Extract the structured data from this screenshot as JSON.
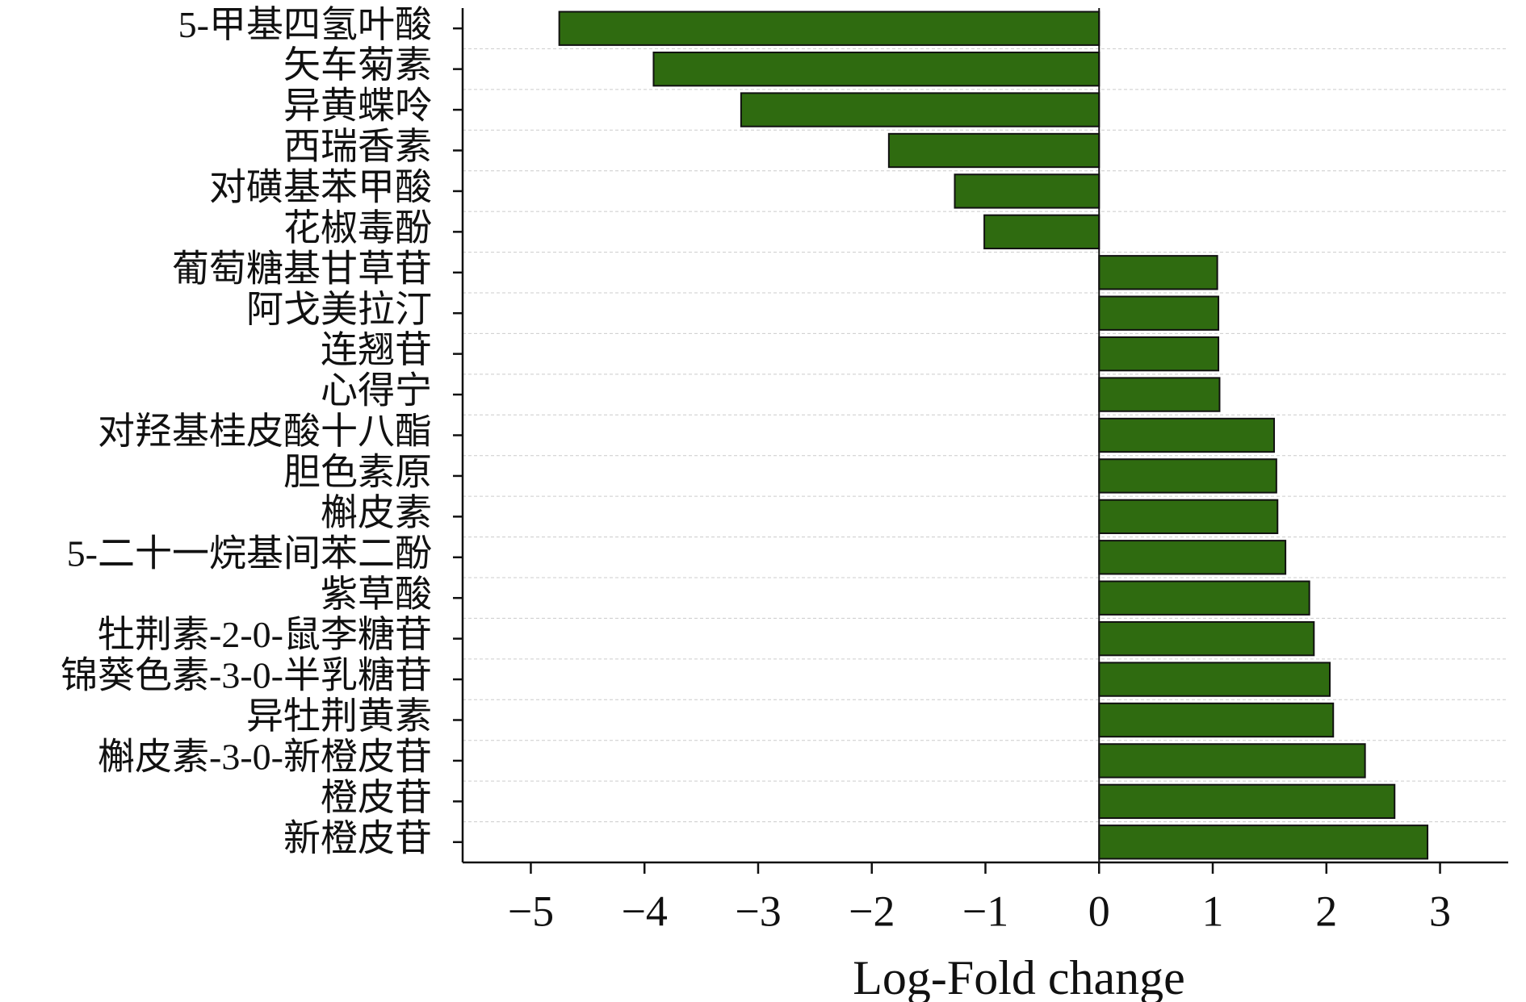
{
  "chart_data": {
    "type": "barh",
    "categories": [
      "5-甲基四氢叶酸",
      "矢车菊素",
      "异黄蝶呤",
      "西瑞香素",
      "对磺基苯甲酸",
      "花椒毒酚",
      "葡萄糖基甘草苷",
      "阿戈美拉汀",
      "连翘苷",
      "心得宁",
      "对羟基桂皮酸十八酯",
      "胆色素原",
      "槲皮素",
      "5-二十一烷基间苯二酚",
      "紫草酸",
      "牡荆素-2-0-鼠李糖苷",
      "锦葵色素-3-0-半乳糖苷",
      "异牡荆黄素",
      "槲皮素-3-0-新橙皮苷",
      "橙皮苷",
      "新橙皮苷"
    ],
    "values": [
      -4.75,
      -3.92,
      -3.15,
      -1.85,
      -1.27,
      -1.01,
      1.04,
      1.05,
      1.05,
      1.06,
      1.54,
      1.56,
      1.57,
      1.64,
      1.85,
      1.89,
      2.03,
      2.06,
      2.34,
      2.6,
      2.89
    ],
    "color": "#2f6b10",
    "xlabel": "Log-Fold change",
    "xlim": [
      -5.6,
      3.6
    ],
    "xticks": [
      {
        "value": -5,
        "label": "−5"
      },
      {
        "value": -4,
        "label": "−4"
      },
      {
        "value": -3,
        "label": "−3"
      },
      {
        "value": -2,
        "label": "−2"
      },
      {
        "value": -1,
        "label": "−1"
      },
      0,
      1,
      2,
      3
    ]
  }
}
